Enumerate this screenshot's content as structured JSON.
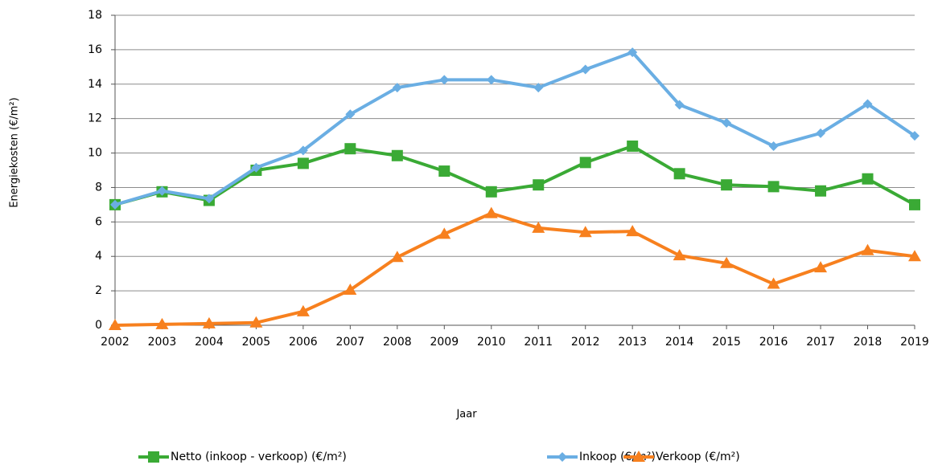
{
  "chart_data": {
    "type": "line",
    "y_label": "Energiekosten (€/m²)",
    "x_label": "Jaar",
    "x": [
      2002,
      2003,
      2004,
      2005,
      2006,
      2007,
      2008,
      2009,
      2010,
      2011,
      2012,
      2013,
      2014,
      2015,
      2016,
      2017,
      2018,
      2019
    ],
    "xlim": [
      2002,
      2019
    ],
    "xticks": [
      2002,
      2003,
      2004,
      2005,
      2006,
      2007,
      2008,
      2009,
      2010,
      2011,
      2012,
      2013,
      2014,
      2015,
      2016,
      2017,
      2018,
      2019
    ],
    "ylim": [
      0,
      18
    ],
    "yticks": [
      0,
      2,
      4,
      6,
      8,
      10,
      12,
      14,
      16,
      18
    ],
    "grid": true,
    "legend": "bottom",
    "series": [
      {
        "name": "Netto (inkoop - verkoop) (€/m²)",
        "color": "#3aaa35",
        "marker": "square",
        "values": [
          7.0,
          7.75,
          7.25,
          9.0,
          9.4,
          10.25,
          9.85,
          8.95,
          7.75,
          8.15,
          9.45,
          10.4,
          8.8,
          8.15,
          8.05,
          7.8,
          8.5,
          7.0
        ]
      },
      {
        "name": "Inkoop (€/m²)",
        "color": "#6aaee3",
        "marker": "diamond",
        "values": [
          7.0,
          7.8,
          7.35,
          9.15,
          10.15,
          12.25,
          13.8,
          14.25,
          14.25,
          13.8,
          14.85,
          15.85,
          12.8,
          11.75,
          10.4,
          11.15,
          12.85,
          11.0
        ]
      },
      {
        "name": "Verkoop (€/m²)",
        "color": "#f7801e",
        "marker": "triangle",
        "values": [
          0,
          0.05,
          0.1,
          0.15,
          0.8,
          2.05,
          3.95,
          5.3,
          6.5,
          5.65,
          5.4,
          5.45,
          4.05,
          3.6,
          2.4,
          3.35,
          4.35,
          4.0
        ]
      }
    ]
  }
}
